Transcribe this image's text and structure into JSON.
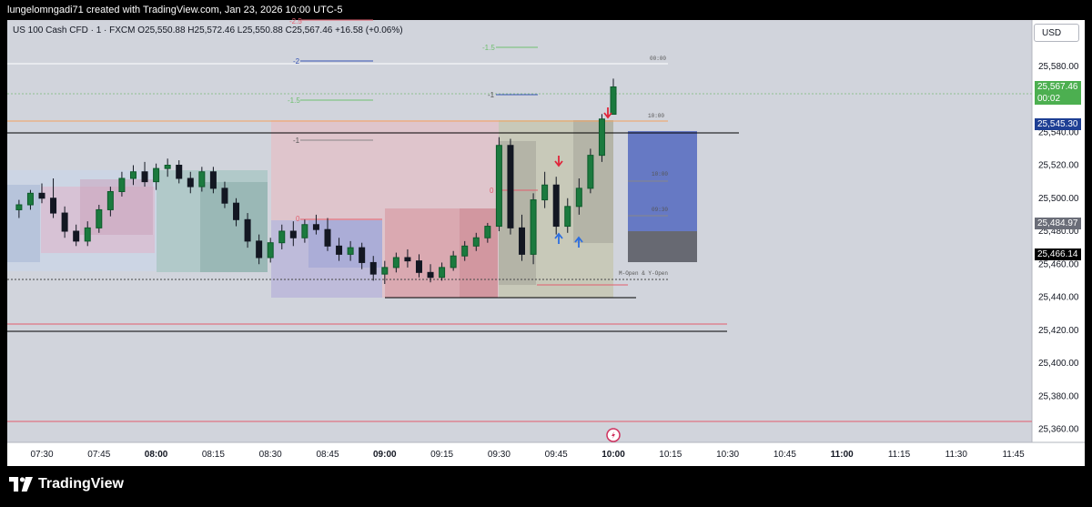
{
  "header": {
    "title": "lungelomngadi71 created with TradingView.com, Jan 23, 2026 10:00 UTC-5"
  },
  "symbol": {
    "info": "US 100 Cash CFD · 1 · FXCM  O25,550.88  H25,572.46  L25,550.88  C25,567.46  +16.58 (+0.06%)"
  },
  "currency": "USD",
  "footer": {
    "brand": "TradingView"
  },
  "chart_data": {
    "type": "candlestick",
    "ylim": [
      25352,
      25608
    ],
    "y_ticks": [
      "25,580.00",
      "25,560.00",
      "25,540.00",
      "25,520.00",
      "25,500.00",
      "25,480.00",
      "25,460.00",
      "25,440.00",
      "25,420.00",
      "25,400.00",
      "25,380.00",
      "25,360.00"
    ],
    "x_ticks": [
      "07:30",
      "07:45",
      "08:00",
      "08:15",
      "08:30",
      "08:45",
      "09:00",
      "09:15",
      "09:30",
      "09:45",
      "10:00",
      "10:15",
      "10:30",
      "10:45",
      "11:00",
      "11:15",
      "11:30",
      "11:45"
    ],
    "bold_x_ticks": [
      "08:00",
      "09:00",
      "10:00",
      "11:00"
    ],
    "price_labels": [
      {
        "text": "25,567.46",
        "sub": "00:02",
        "value": 25567.46,
        "color": "#4caf50"
      },
      {
        "text": "25,545.30",
        "value": 25545.3,
        "color": "#1e3f94"
      },
      {
        "text": "25,484.97",
        "value": 25484.97,
        "color": "#6a6d78"
      },
      {
        "text": "25,466.14",
        "value": 25466.14,
        "color": "#000000"
      }
    ],
    "annotations": [
      "-2.5",
      "-1.5",
      "-2",
      "-1.5",
      "-1",
      "-1",
      "0",
      "0",
      "00:00",
      "10:00",
      "09:30",
      "M-Open & Y-Open",
      "10:00"
    ],
    "candles": [
      {
        "t": "07:24",
        "o": 25493,
        "h": 25499,
        "l": 25488,
        "c": 25496
      },
      {
        "t": "07:27",
        "o": 25496,
        "h": 25505,
        "l": 25493,
        "c": 25503
      },
      {
        "t": "07:30",
        "o": 25503,
        "h": 25509,
        "l": 25497,
        "c": 25500
      },
      {
        "t": "07:33",
        "o": 25500,
        "h": 25512,
        "l": 25488,
        "c": 25491
      },
      {
        "t": "07:36",
        "o": 25491,
        "h": 25495,
        "l": 25476,
        "c": 25480
      },
      {
        "t": "07:39",
        "o": 25480,
        "h": 25484,
        "l": 25471,
        "c": 25474
      },
      {
        "t": "07:42",
        "o": 25474,
        "h": 25486,
        "l": 25471,
        "c": 25482
      },
      {
        "t": "07:45",
        "o": 25482,
        "h": 25496,
        "l": 25479,
        "c": 25493
      },
      {
        "t": "07:48",
        "o": 25493,
        "h": 25507,
        "l": 25489,
        "c": 25504
      },
      {
        "t": "07:51",
        "o": 25504,
        "h": 25516,
        "l": 25501,
        "c": 25512
      },
      {
        "t": "07:54",
        "o": 25512,
        "h": 25520,
        "l": 25508,
        "c": 25516
      },
      {
        "t": "07:57",
        "o": 25516,
        "h": 25522,
        "l": 25507,
        "c": 25510
      },
      {
        "t": "08:00",
        "o": 25510,
        "h": 25521,
        "l": 25505,
        "c": 25518
      },
      {
        "t": "08:03",
        "o": 25518,
        "h": 25524,
        "l": 25513,
        "c": 25520
      },
      {
        "t": "08:06",
        "o": 25520,
        "h": 25523,
        "l": 25509,
        "c": 25512
      },
      {
        "t": "08:09",
        "o": 25512,
        "h": 25516,
        "l": 25503,
        "c": 25507
      },
      {
        "t": "08:12",
        "o": 25507,
        "h": 25519,
        "l": 25504,
        "c": 25516
      },
      {
        "t": "08:15",
        "o": 25516,
        "h": 25519,
        "l": 25503,
        "c": 25506
      },
      {
        "t": "08:18",
        "o": 25506,
        "h": 25510,
        "l": 25494,
        "c": 25497
      },
      {
        "t": "08:21",
        "o": 25497,
        "h": 25500,
        "l": 25483,
        "c": 25487
      },
      {
        "t": "08:24",
        "o": 25487,
        "h": 25491,
        "l": 25470,
        "c": 25474
      },
      {
        "t": "08:27",
        "o": 25474,
        "h": 25478,
        "l": 25460,
        "c": 25464
      },
      {
        "t": "08:30",
        "o": 25464,
        "h": 25476,
        "l": 25461,
        "c": 25473
      },
      {
        "t": "08:33",
        "o": 25473,
        "h": 25484,
        "l": 25469,
        "c": 25480
      },
      {
        "t": "08:36",
        "o": 25480,
        "h": 25486,
        "l": 25471,
        "c": 25476
      },
      {
        "t": "08:39",
        "o": 25476,
        "h": 25487,
        "l": 25473,
        "c": 25484
      },
      {
        "t": "08:42",
        "o": 25484,
        "h": 25490,
        "l": 25478,
        "c": 25481
      },
      {
        "t": "08:45",
        "o": 25481,
        "h": 25488,
        "l": 25468,
        "c": 25471
      },
      {
        "t": "08:48",
        "o": 25471,
        "h": 25476,
        "l": 25462,
        "c": 25466
      },
      {
        "t": "08:51",
        "o": 25466,
        "h": 25474,
        "l": 25462,
        "c": 25470
      },
      {
        "t": "08:54",
        "o": 25470,
        "h": 25473,
        "l": 25457,
        "c": 25461
      },
      {
        "t": "08:57",
        "o": 25461,
        "h": 25465,
        "l": 25450,
        "c": 25454
      },
      {
        "t": "09:00",
        "o": 25454,
        "h": 25462,
        "l": 25448,
        "c": 25458
      },
      {
        "t": "09:03",
        "o": 25458,
        "h": 25467,
        "l": 25455,
        "c": 25464
      },
      {
        "t": "09:06",
        "o": 25464,
        "h": 25469,
        "l": 25458,
        "c": 25462
      },
      {
        "t": "09:09",
        "o": 25462,
        "h": 25466,
        "l": 25452,
        "c": 25455
      },
      {
        "t": "09:12",
        "o": 25455,
        "h": 25460,
        "l": 25449,
        "c": 25452
      },
      {
        "t": "09:15",
        "o": 25452,
        "h": 25461,
        "l": 25450,
        "c": 25458
      },
      {
        "t": "09:18",
        "o": 25458,
        "h": 25468,
        "l": 25456,
        "c": 25465
      },
      {
        "t": "09:21",
        "o": 25465,
        "h": 25474,
        "l": 25462,
        "c": 25471
      },
      {
        "t": "09:24",
        "o": 25471,
        "h": 25479,
        "l": 25468,
        "c": 25476
      },
      {
        "t": "09:27",
        "o": 25476,
        "h": 25485,
        "l": 25473,
        "c": 25483
      },
      {
        "t": "09:30",
        "o": 25483,
        "h": 25537,
        "l": 25480,
        "c": 25532
      },
      {
        "t": "09:33",
        "o": 25532,
        "h": 25536,
        "l": 25478,
        "c": 25482
      },
      {
        "t": "09:36",
        "o": 25482,
        "h": 25490,
        "l": 25462,
        "c": 25466
      },
      {
        "t": "09:39",
        "o": 25466,
        "h": 25503,
        "l": 25460,
        "c": 25499
      },
      {
        "t": "09:42",
        "o": 25499,
        "h": 25516,
        "l": 25494,
        "c": 25508
      },
      {
        "t": "09:45",
        "o": 25508,
        "h": 25513,
        "l": 25478,
        "c": 25483
      },
      {
        "t": "09:48",
        "o": 25483,
        "h": 25500,
        "l": 25479,
        "c": 25495
      },
      {
        "t": "09:51",
        "o": 25495,
        "h": 25512,
        "l": 25490,
        "c": 25506
      },
      {
        "t": "09:54",
        "o": 25506,
        "h": 25530,
        "l": 25503,
        "c": 25526
      },
      {
        "t": "09:57",
        "o": 25526,
        "h": 25551,
        "l": 25522,
        "c": 25548
      },
      {
        "t": "10:00",
        "o": 25550.88,
        "h": 25572.46,
        "l": 25550.88,
        "c": 25567.46
      }
    ]
  }
}
